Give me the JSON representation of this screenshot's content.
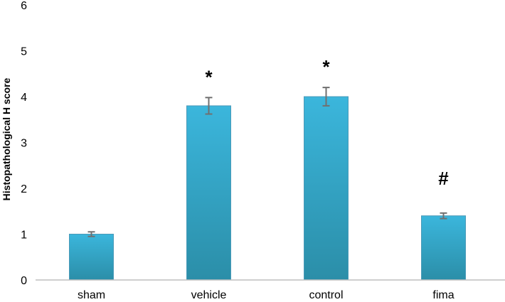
{
  "chart_data": {
    "type": "bar",
    "title": "",
    "xlabel": "",
    "ylabel": "Histopathological H score",
    "categories": [
      "sham",
      "vehicle",
      "control",
      "fima"
    ],
    "values": [
      1.0,
      3.8,
      4.0,
      1.4
    ],
    "errors": [
      0.05,
      0.18,
      0.2,
      0.06
    ],
    "annotations": [
      "",
      "*",
      "*",
      "#"
    ],
    "ylim": [
      0,
      6
    ],
    "yticks": [
      0,
      1,
      2,
      3,
      4,
      5,
      6
    ],
    "grid": false,
    "legend": "none",
    "colors": {
      "bar_top": "#3bb6dc",
      "bar_bottom": "#2b8ea8",
      "bar_edge": "#4a9ab8",
      "error_bar": "#707070",
      "axis": "#bfbfbf"
    }
  }
}
